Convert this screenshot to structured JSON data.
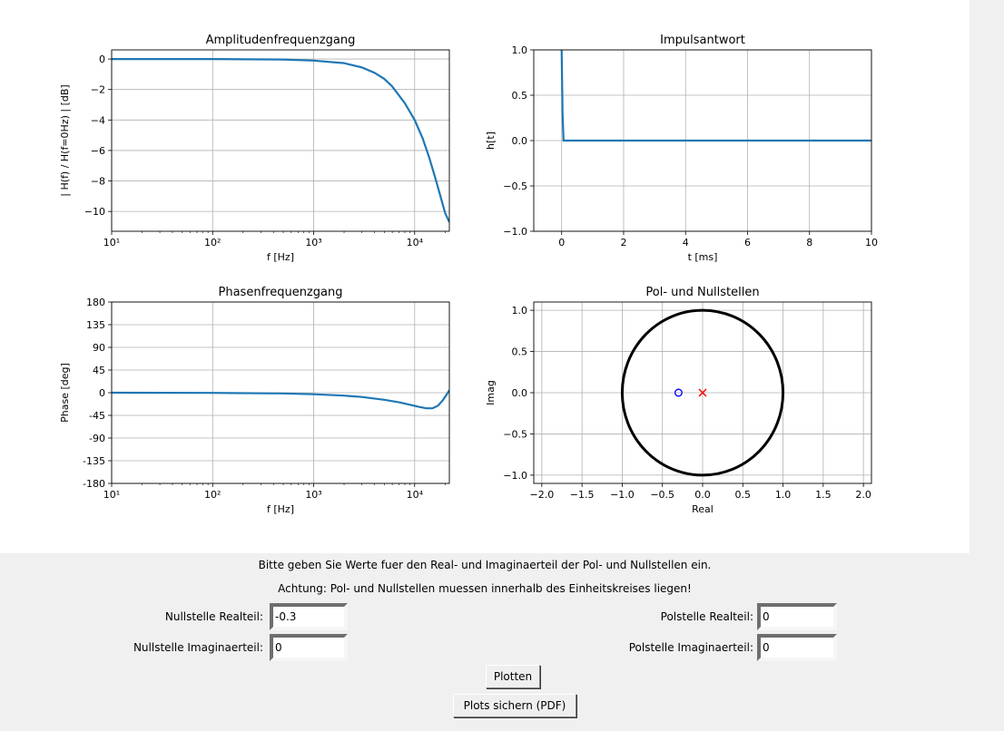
{
  "instructions": {
    "line1": "Bitte geben Sie Werte fuer den Real- und Imaginaerteil der Pol- und Nullstellen ein.",
    "line2": "Achtung: Pol- und Nullstellen muessen innerhalb des Einheitskreises liegen!"
  },
  "form": {
    "zero_real_label": "Nullstelle Realteil:",
    "zero_real_value": "-0.3",
    "zero_imag_label": "Nullstelle Imaginaerteil:",
    "zero_imag_value": "0",
    "pole_real_label": "Polstelle Realteil:",
    "pole_real_value": "0",
    "pole_imag_label": "Polstelle Imaginaerteil:",
    "pole_imag_value": "0"
  },
  "buttons": {
    "plot": "Plotten",
    "save": "Plots sichern (PDF)"
  },
  "colors": {
    "line": "#1f77b4",
    "zero": "#0000ff",
    "pole": "#ff0000",
    "grid": "#b0b0b0"
  },
  "chart_data": [
    {
      "type": "line",
      "title": "Amplitudenfrequenzgang",
      "xlabel": "f [Hz]",
      "ylabel": "| H(f) / H(f=0Hz) | [dB]",
      "xscale": "log",
      "xlim": [
        10,
        22050
      ],
      "ylim": [
        -11.3,
        0.6
      ],
      "xticks": [
        10,
        100,
        1000,
        10000
      ],
      "xticklabels": [
        "10¹",
        "10²",
        "10³",
        "10⁴"
      ],
      "yticks": [
        0,
        -2,
        -4,
        -6,
        -8,
        -10
      ],
      "yticklabels": [
        "0",
        "−2",
        "−4",
        "−6",
        "−8",
        "−10"
      ],
      "grid": true,
      "x": [
        10,
        100,
        500,
        1000,
        2000,
        3000,
        4000,
        5000,
        6000,
        8000,
        10000,
        12000,
        14000,
        16000,
        18000,
        20000,
        22050
      ],
      "y": [
        0,
        -0.001,
        -0.03,
        -0.1,
        -0.27,
        -0.55,
        -0.9,
        -1.3,
        -1.8,
        -2.9,
        -4.0,
        -5.2,
        -6.5,
        -7.8,
        -9.0,
        -10.1,
        -10.7
      ]
    },
    {
      "type": "line",
      "title": "Impulsantwort",
      "xlabel": "t [ms]",
      "ylabel": "h[t]",
      "xlim": [
        -0.9,
        10
      ],
      "ylim": [
        -1.0,
        1.0
      ],
      "xticks": [
        0,
        2,
        4,
        6,
        8,
        10
      ],
      "xticklabels": [
        "0",
        "2",
        "4",
        "6",
        "8",
        "10"
      ],
      "yticks": [
        1.0,
        0.5,
        0.0,
        -0.5,
        -1.0
      ],
      "yticklabels": [
        "1.0",
        "0.5",
        "0.0",
        "−0.5",
        "−1.0"
      ],
      "grid": true,
      "x": [
        0,
        0.03,
        0.06,
        0.1,
        10
      ],
      "y": [
        1.0,
        0.3,
        0.0,
        0.0,
        0.0
      ]
    },
    {
      "type": "line",
      "title": "Phasenfrequenzgang",
      "xlabel": "f [Hz]",
      "ylabel": "Phase [deg]",
      "xscale": "log",
      "xlim": [
        10,
        22050
      ],
      "ylim": [
        -180,
        180
      ],
      "xticks": [
        10,
        100,
        1000,
        10000
      ],
      "xticklabels": [
        "10¹",
        "10²",
        "10³",
        "10⁴"
      ],
      "yticks": [
        180,
        135,
        90,
        45,
        0,
        -45,
        -90,
        -135,
        -180
      ],
      "yticklabels": [
        "180",
        "135",
        "90",
        "45",
        "0",
        "-45",
        "-90",
        "-135",
        "-180"
      ],
      "grid": true,
      "x": [
        10,
        100,
        500,
        1000,
        2000,
        3000,
        5000,
        7000,
        9000,
        11000,
        13000,
        15000,
        17000,
        19000,
        21000,
        22050
      ],
      "y": [
        0,
        -0.3,
        -1.5,
        -3,
        -5.8,
        -8.5,
        -14,
        -19,
        -24,
        -28,
        -31,
        -31,
        -26,
        -15,
        -2,
        5
      ]
    },
    {
      "type": "scatter",
      "title": "Pol- und Nullstellen",
      "xlabel": "Real",
      "ylabel": "Imag",
      "xlim": [
        -2.1,
        2.1
      ],
      "ylim": [
        -1.1,
        1.1
      ],
      "xticks": [
        -2.0,
        -1.5,
        -1.0,
        -0.5,
        0.0,
        0.5,
        1.0,
        1.5,
        2.0
      ],
      "xticklabels": [
        "−2.0",
        "−1.5",
        "−1.0",
        "−0.5",
        "0.0",
        "0.5",
        "1.0",
        "1.5",
        "2.0"
      ],
      "yticks": [
        1.0,
        0.5,
        0.0,
        -0.5,
        -1.0
      ],
      "yticklabels": [
        "1.0",
        "0.5",
        "0.0",
        "−0.5",
        "−1.0"
      ],
      "grid": true,
      "unit_circle": true,
      "zeros": [
        {
          "re": -0.3,
          "im": 0
        }
      ],
      "poles": [
        {
          "re": 0,
          "im": 0
        }
      ]
    }
  ]
}
